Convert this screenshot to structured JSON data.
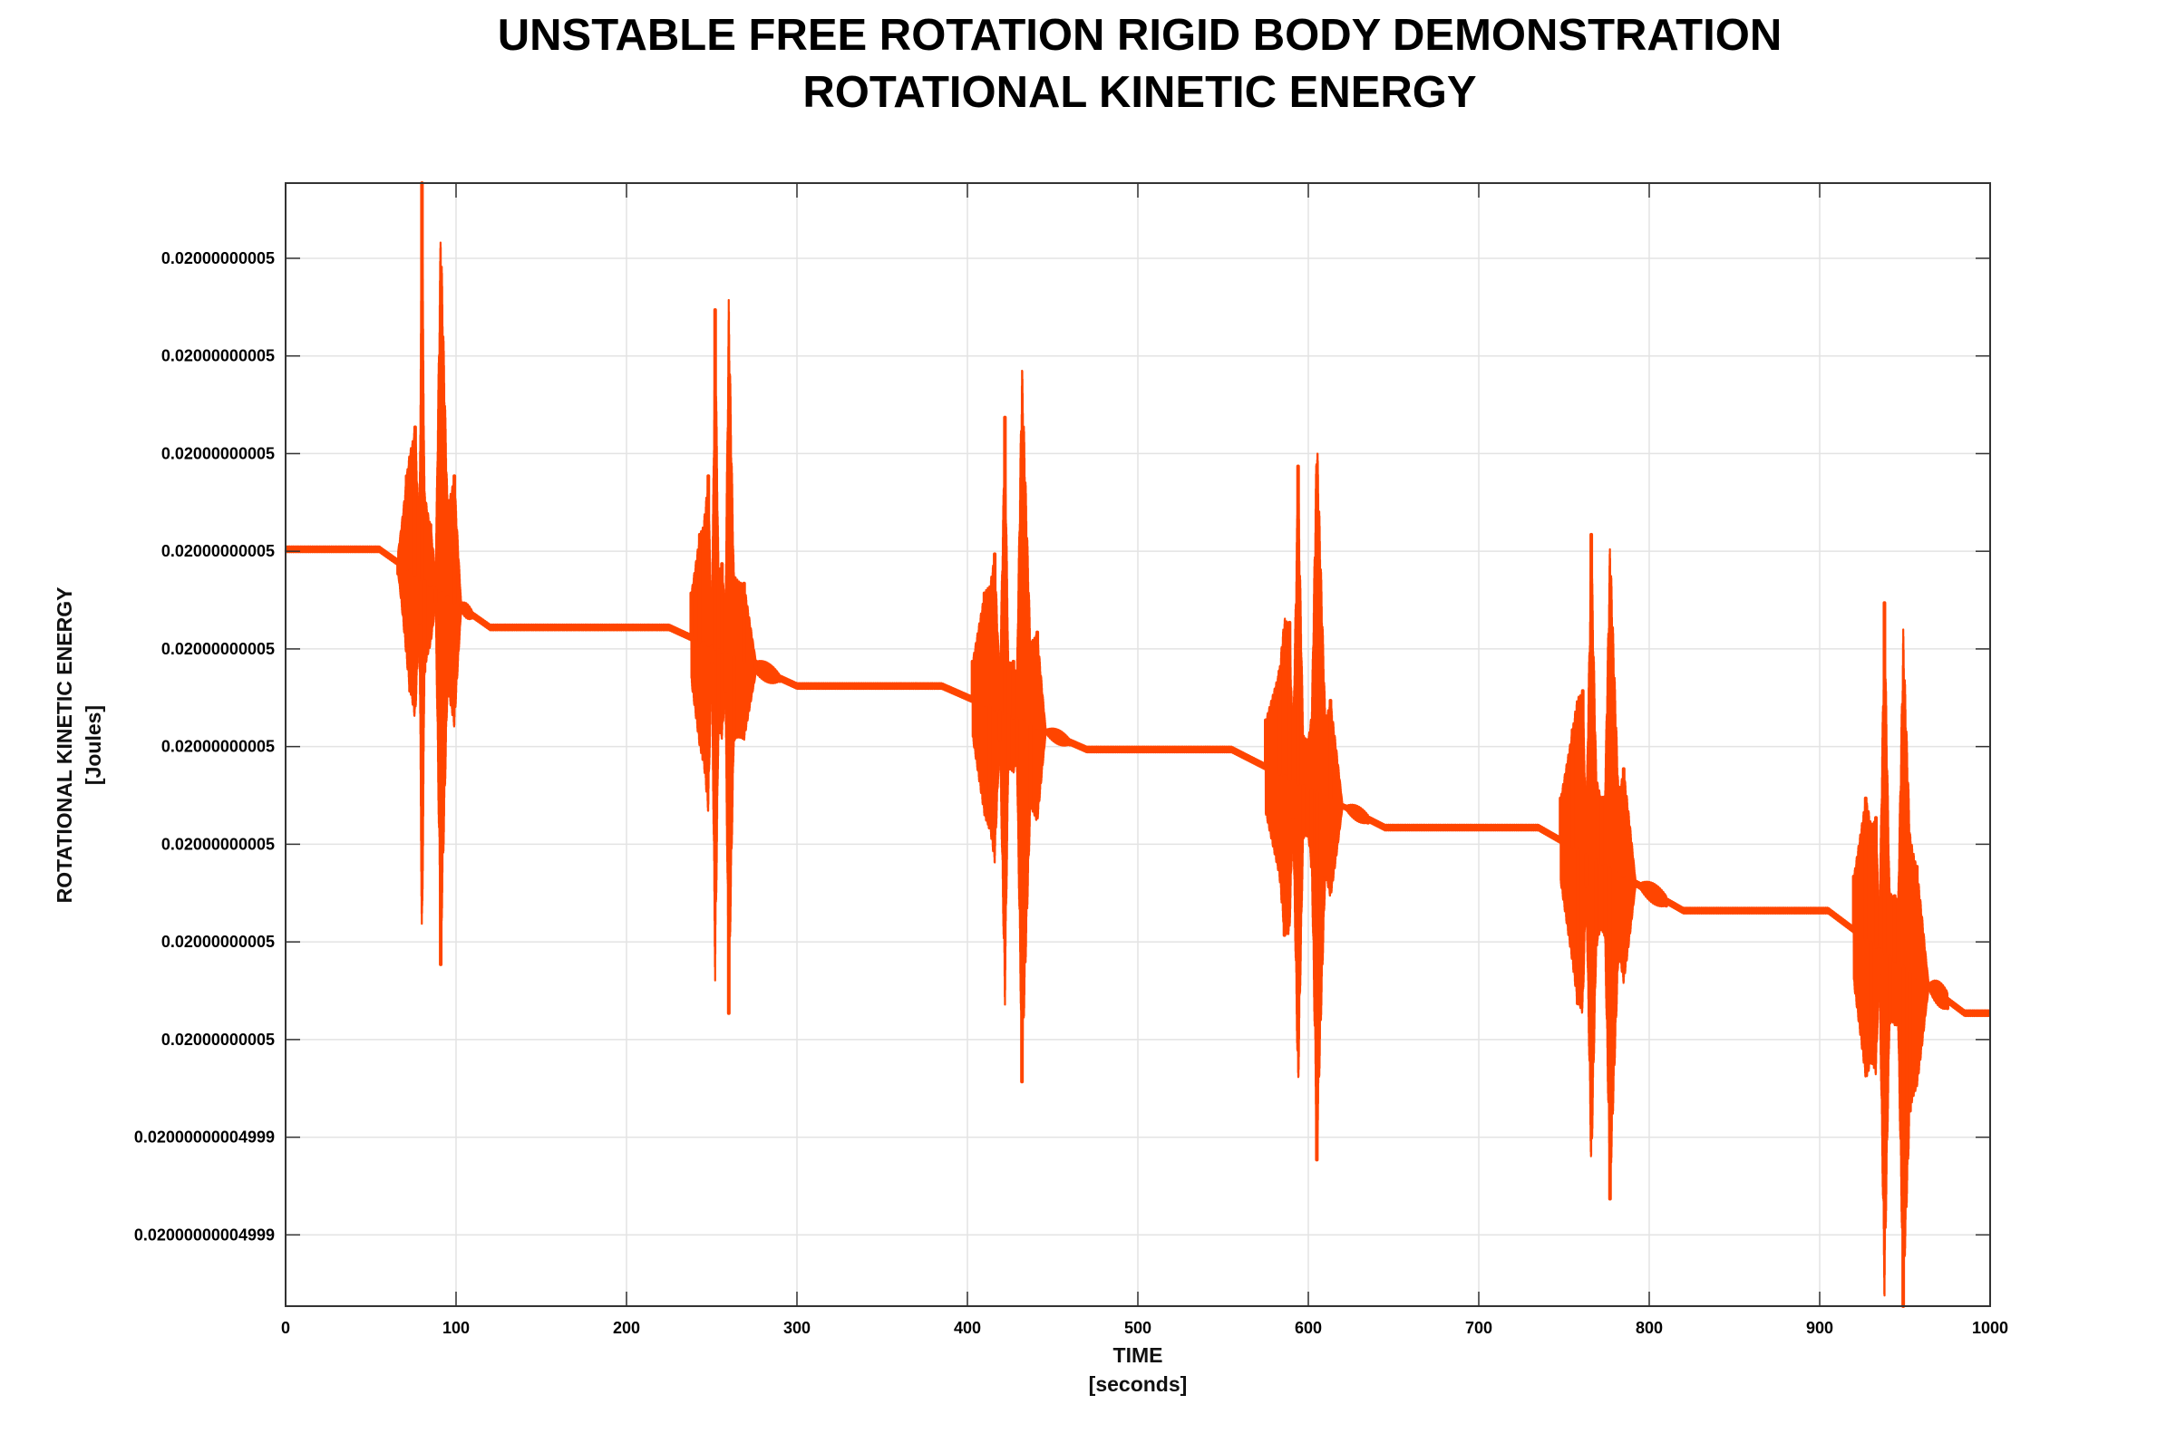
{
  "chart_data": {
    "type": "line",
    "title_line1": "UNSTABLE FREE ROTATION RIGID BODY DEMONSTRATION",
    "title_line2": "ROTATIONAL KINETIC ENERGY",
    "xlabel_line1": "TIME",
    "xlabel_line2": "[seconds]",
    "ylabel_line1": "ROTATIONAL KINETIC ENERGY",
    "ylabel_line2": "[Joules]",
    "xlim": [
      0,
      1000
    ],
    "ylim": [
      0.0,
      11.5
    ],
    "x_ticks": [
      0,
      100,
      200,
      300,
      400,
      500,
      600,
      700,
      800,
      900,
      1000
    ],
    "y_ticks": [
      {
        "value": 10.73,
        "label": "0.02000000005"
      },
      {
        "value": 9.73,
        "label": "0.02000000005"
      },
      {
        "value": 8.73,
        "label": "0.02000000005"
      },
      {
        "value": 7.73,
        "label": "0.02000000005"
      },
      {
        "value": 6.73,
        "label": "0.02000000005"
      },
      {
        "value": 5.73,
        "label": "0.02000000005"
      },
      {
        "value": 4.73,
        "label": "0.02000000005"
      },
      {
        "value": 3.73,
        "label": "0.02000000005"
      },
      {
        "value": 2.73,
        "label": "0.02000000005"
      },
      {
        "value": 1.73,
        "label": "0.02000000004999"
      },
      {
        "value": 0.73,
        "label": "0.02000000004999"
      }
    ],
    "grid": true,
    "line_color": "#ff4500",
    "plateaus": [
      {
        "x_start": 0,
        "x_end": 55,
        "y": 7.75
      },
      {
        "x_start": 120,
        "x_end": 225,
        "y": 6.95
      },
      {
        "x_start": 300,
        "x_end": 385,
        "y": 6.35
      },
      {
        "x_start": 470,
        "x_end": 555,
        "y": 5.7
      },
      {
        "x_start": 645,
        "x_end": 735,
        "y": 4.9
      },
      {
        "x_start": 820,
        "x_end": 905,
        "y": 4.05
      },
      {
        "x_start": 985,
        "x_end": 1000,
        "y": 3.0
      }
    ],
    "bursts": [
      {
        "center": 80,
        "level_before": 7.75,
        "level_after": 6.95,
        "spikes": [
          {
            "x": 66,
            "y": 7.5
          },
          {
            "x": 71,
            "y": 8.5
          },
          {
            "x": 73,
            "y": 6.3
          },
          {
            "x": 76,
            "y": 9.0
          },
          {
            "x": 78.5,
            "y": 7.0
          },
          {
            "x": 80,
            "y": 11.5
          },
          {
            "x": 81.5,
            "y": 6.5
          },
          {
            "x": 85,
            "y": 8.0
          },
          {
            "x": 88,
            "y": 7.2
          },
          {
            "x": 91,
            "y": 3.5
          },
          {
            "x": 95,
            "y": 6.3
          },
          {
            "x": 99,
            "y": 8.5
          },
          {
            "x": 103,
            "y": 7.2
          },
          {
            "x": 110,
            "y": 7.05
          }
        ]
      },
      {
        "center": 252,
        "level_before": 6.95,
        "level_after": 6.35,
        "spikes": [
          {
            "x": 238,
            "y": 7.3
          },
          {
            "x": 243,
            "y": 7.9
          },
          {
            "x": 245,
            "y": 5.6
          },
          {
            "x": 248,
            "y": 8.5
          },
          {
            "x": 250,
            "y": 6.6
          },
          {
            "x": 252,
            "y": 10.2
          },
          {
            "x": 254,
            "y": 5.9
          },
          {
            "x": 256,
            "y": 7.6
          },
          {
            "x": 258,
            "y": 6.3
          },
          {
            "x": 260,
            "y": 3.0
          },
          {
            "x": 263,
            "y": 5.8
          },
          {
            "x": 269,
            "y": 7.4
          },
          {
            "x": 276,
            "y": 6.6
          },
          {
            "x": 290,
            "y": 6.4
          }
        ]
      },
      {
        "center": 422,
        "level_before": 6.35,
        "level_after": 5.7,
        "spikes": [
          {
            "x": 403,
            "y": 6.6
          },
          {
            "x": 410,
            "y": 7.3
          },
          {
            "x": 413,
            "y": 4.9
          },
          {
            "x": 416,
            "y": 7.7
          },
          {
            "x": 419,
            "y": 5.8
          },
          {
            "x": 422,
            "y": 9.1
          },
          {
            "x": 424,
            "y": 5.5
          },
          {
            "x": 427,
            "y": 6.6
          },
          {
            "x": 429,
            "y": 5.6
          },
          {
            "x": 432,
            "y": 2.3
          },
          {
            "x": 437,
            "y": 5.1
          },
          {
            "x": 441,
            "y": 6.9
          },
          {
            "x": 446,
            "y": 5.9
          },
          {
            "x": 460,
            "y": 5.75
          }
        ]
      },
      {
        "center": 593,
        "level_before": 5.7,
        "level_after": 4.9,
        "spikes": [
          {
            "x": 575,
            "y": 6.0
          },
          {
            "x": 583,
            "y": 6.5
          },
          {
            "x": 586,
            "y": 3.8
          },
          {
            "x": 589,
            "y": 7.0
          },
          {
            "x": 591,
            "y": 5.0
          },
          {
            "x": 594,
            "y": 8.6
          },
          {
            "x": 597,
            "y": 4.8
          },
          {
            "x": 600,
            "y": 5.8
          },
          {
            "x": 602,
            "y": 4.5
          },
          {
            "x": 605,
            "y": 1.5
          },
          {
            "x": 610,
            "y": 4.4
          },
          {
            "x": 613,
            "y": 6.2
          },
          {
            "x": 620,
            "y": 5.1
          },
          {
            "x": 635,
            "y": 4.95
          }
        ]
      },
      {
        "center": 766,
        "level_before": 4.9,
        "level_after": 4.05,
        "spikes": [
          {
            "x": 748,
            "y": 5.2
          },
          {
            "x": 755,
            "y": 5.9
          },
          {
            "x": 758,
            "y": 3.1
          },
          {
            "x": 761,
            "y": 6.3
          },
          {
            "x": 763,
            "y": 4.3
          },
          {
            "x": 766,
            "y": 7.9
          },
          {
            "x": 769,
            "y": 3.7
          },
          {
            "x": 772,
            "y": 5.2
          },
          {
            "x": 774,
            "y": 3.8
          },
          {
            "x": 777,
            "y": 1.1
          },
          {
            "x": 782,
            "y": 3.6
          },
          {
            "x": 785,
            "y": 5.5
          },
          {
            "x": 792,
            "y": 4.3
          },
          {
            "x": 810,
            "y": 4.1
          }
        ]
      },
      {
        "center": 938,
        "level_before": 4.05,
        "level_after": 3.0,
        "spikes": [
          {
            "x": 920,
            "y": 4.4
          },
          {
            "x": 927,
            "y": 5.2
          },
          {
            "x": 930,
            "y": 2.5
          },
          {
            "x": 933,
            "y": 5.0
          },
          {
            "x": 935,
            "y": 3.4
          },
          {
            "x": 938,
            "y": 7.2
          },
          {
            "x": 941,
            "y": 2.9
          },
          {
            "x": 944,
            "y": 4.2
          },
          {
            "x": 946,
            "y": 2.9
          },
          {
            "x": 949,
            "y": 0.0
          },
          {
            "x": 953,
            "y": 2.0
          },
          {
            "x": 957,
            "y": 4.5
          },
          {
            "x": 964,
            "y": 3.3
          },
          {
            "x": 975,
            "y": 3.05
          }
        ]
      }
    ]
  }
}
